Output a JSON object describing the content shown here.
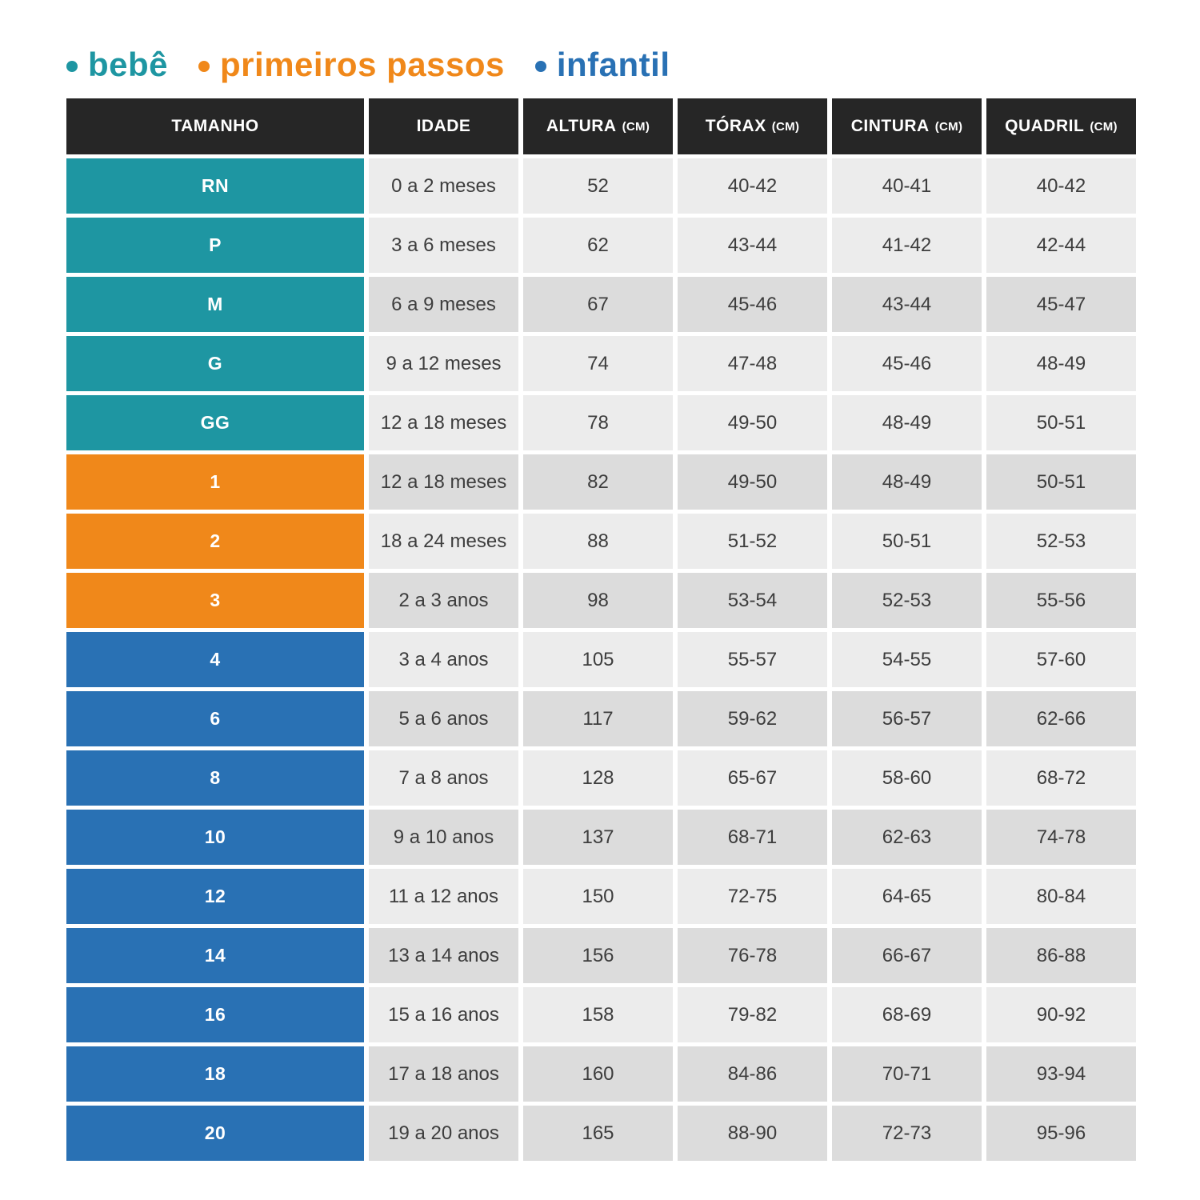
{
  "legend": {
    "items": [
      {
        "key": "bebe",
        "label": "bebê",
        "color": "#1e96a2"
      },
      {
        "key": "primeiros-passos",
        "label": "primeiros passos",
        "color": "#f0881a"
      },
      {
        "key": "infantil",
        "label": "infantil",
        "color": "#2971b4"
      }
    ]
  },
  "colors": {
    "header_bg": "#262626",
    "header_text": "#ffffff",
    "bebe": "#1e96a2",
    "primeiros-passos": "#f0881a",
    "infantil": "#2971b4",
    "row_light": "#ececec",
    "row_dark": "#dcdcdc",
    "data_text": "#3d3d3d"
  },
  "chart_data": {
    "type": "table",
    "columns": [
      {
        "key": "tamanho",
        "label": "TAMANHO",
        "unit": ""
      },
      {
        "key": "idade",
        "label": "IDADE",
        "unit": ""
      },
      {
        "key": "altura",
        "label": "ALTURA",
        "unit": "(CM)"
      },
      {
        "key": "torax",
        "label": "TÓRAX",
        "unit": "(CM)"
      },
      {
        "key": "cintura",
        "label": "CINTURA",
        "unit": "(CM)"
      },
      {
        "key": "quadril",
        "label": "QUADRIL",
        "unit": "(CM)"
      }
    ],
    "rows": [
      {
        "size": "RN",
        "group": "bebe",
        "tone": "light",
        "idade": "0 a 2 meses",
        "altura": "52",
        "torax": "40-42",
        "cintura": "40-41",
        "quadril": "40-42"
      },
      {
        "size": "P",
        "group": "bebe",
        "tone": "light",
        "idade": "3 a 6 meses",
        "altura": "62",
        "torax": "43-44",
        "cintura": "41-42",
        "quadril": "42-44"
      },
      {
        "size": "M",
        "group": "bebe",
        "tone": "dark",
        "idade": "6 a 9 meses",
        "altura": "67",
        "torax": "45-46",
        "cintura": "43-44",
        "quadril": "45-47"
      },
      {
        "size": "G",
        "group": "bebe",
        "tone": "light",
        "idade": "9 a 12 meses",
        "altura": "74",
        "torax": "47-48",
        "cintura": "45-46",
        "quadril": "48-49"
      },
      {
        "size": "GG",
        "group": "bebe",
        "tone": "light",
        "idade": "12 a 18 meses",
        "altura": "78",
        "torax": "49-50",
        "cintura": "48-49",
        "quadril": "50-51"
      },
      {
        "size": "1",
        "group": "primeiros-passos",
        "tone": "dark",
        "idade": "12 a 18 meses",
        "altura": "82",
        "torax": "49-50",
        "cintura": "48-49",
        "quadril": "50-51"
      },
      {
        "size": "2",
        "group": "primeiros-passos",
        "tone": "light",
        "idade": "18 a 24 meses",
        "altura": "88",
        "torax": "51-52",
        "cintura": "50-51",
        "quadril": "52-53"
      },
      {
        "size": "3",
        "group": "primeiros-passos",
        "tone": "dark",
        "idade": "2 a 3 anos",
        "altura": "98",
        "torax": "53-54",
        "cintura": "52-53",
        "quadril": "55-56"
      },
      {
        "size": "4",
        "group": "infantil",
        "tone": "light",
        "idade": "3 a 4 anos",
        "altura": "105",
        "torax": "55-57",
        "cintura": "54-55",
        "quadril": "57-60"
      },
      {
        "size": "6",
        "group": "infantil",
        "tone": "dark",
        "idade": "5 a 6 anos",
        "altura": "117",
        "torax": "59-62",
        "cintura": "56-57",
        "quadril": "62-66"
      },
      {
        "size": "8",
        "group": "infantil",
        "tone": "light",
        "idade": "7 a 8 anos",
        "altura": "128",
        "torax": "65-67",
        "cintura": "58-60",
        "quadril": "68-72"
      },
      {
        "size": "10",
        "group": "infantil",
        "tone": "dark",
        "idade": "9 a 10 anos",
        "altura": "137",
        "torax": "68-71",
        "cintura": "62-63",
        "quadril": "74-78"
      },
      {
        "size": "12",
        "group": "infantil",
        "tone": "light",
        "idade": "11 a 12 anos",
        "altura": "150",
        "torax": "72-75",
        "cintura": "64-65",
        "quadril": "80-84"
      },
      {
        "size": "14",
        "group": "infantil",
        "tone": "dark",
        "idade": "13 a 14 anos",
        "altura": "156",
        "torax": "76-78",
        "cintura": "66-67",
        "quadril": "86-88"
      },
      {
        "size": "16",
        "group": "infantil",
        "tone": "light",
        "idade": "15 a 16 anos",
        "altura": "158",
        "torax": "79-82",
        "cintura": "68-69",
        "quadril": "90-92"
      },
      {
        "size": "18",
        "group": "infantil",
        "tone": "dark",
        "idade": "17 a 18 anos",
        "altura": "160",
        "torax": "84-86",
        "cintura": "70-71",
        "quadril": "93-94"
      },
      {
        "size": "20",
        "group": "infantil",
        "tone": "dark",
        "idade": "19 a 20 anos",
        "altura": "165",
        "torax": "88-90",
        "cintura": "72-73",
        "quadril": "95-96"
      }
    ]
  }
}
